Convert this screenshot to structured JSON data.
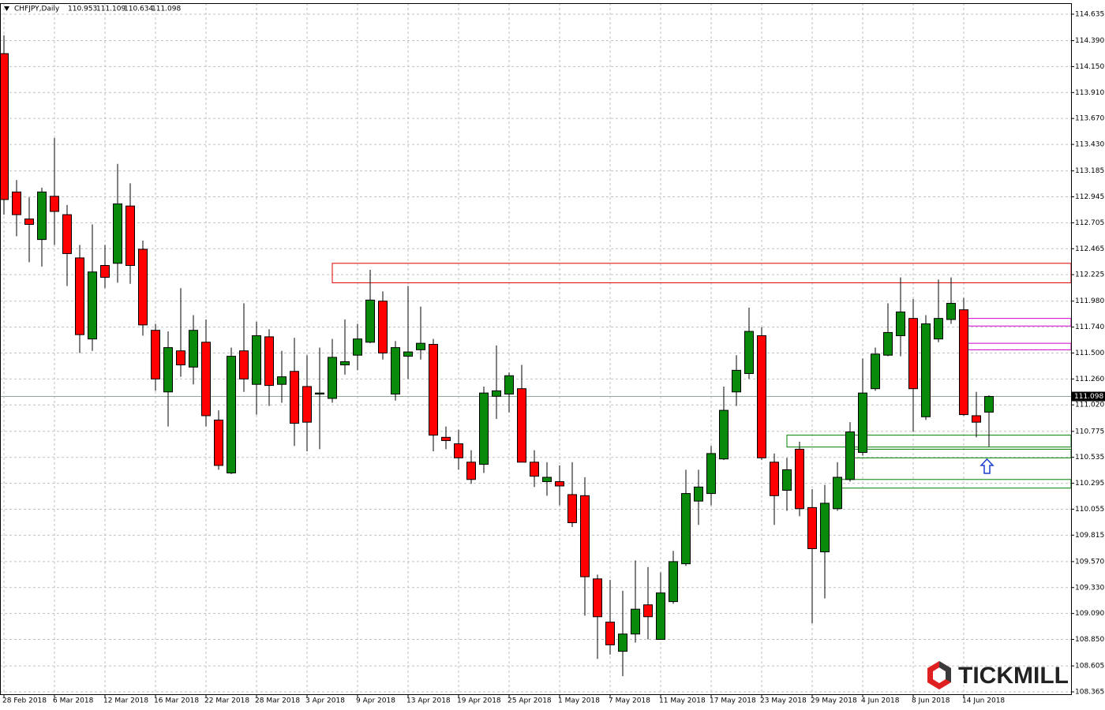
{
  "chart_data": {
    "type": "candlestick",
    "title": "CHFJPY,Daily",
    "watermark": "TICKMILL",
    "up_color": "#0a8a0a",
    "down_color": "#ff0000",
    "grid": true,
    "categories": [
      "28 Feb 2018",
      null,
      null,
      null,
      "6 Mar 2018",
      null,
      null,
      null,
      "12 Mar 2018",
      null,
      null,
      null,
      "16 Mar 2018",
      null,
      null,
      null,
      "22 Mar 2018",
      null,
      null,
      null,
      "28 Mar 2018",
      null,
      null,
      null,
      "3 Apr 2018",
      null,
      null,
      null,
      "9 Apr 2018",
      null,
      null,
      null,
      "13 Apr 2018",
      null,
      null,
      null,
      "19 Apr 2018",
      null,
      null,
      null,
      "25 Apr 2018",
      null,
      null,
      null,
      "1 May 2018",
      null,
      null,
      null,
      "7 May 2018",
      null,
      null,
      null,
      "11 May 2018",
      null,
      null,
      null,
      "17 May 2018",
      null,
      null,
      null,
      "23 May 2018",
      null,
      null,
      null,
      "29 May 2018",
      null,
      null,
      null,
      "4 Jun 2018",
      null,
      null,
      null,
      "8 Jun 2018",
      null,
      null,
      null,
      "14 Jun 2018",
      null,
      null
    ],
    "open": [
      114.27,
      112.99,
      112.74,
      112.55,
      112.95,
      112.78,
      112.38,
      111.63,
      112.31,
      112.33,
      112.86,
      112.46,
      111.71,
      111.14,
      111.52,
      111.37,
      111.6,
      110.88,
      110.39,
      111.52,
      111.21,
      111.65,
      111.21,
      111.33,
      111.19,
      111.12,
      111.08,
      111.39,
      111.48,
      111.6,
      111.98,
      111.12,
      111.47,
      111.53,
      111.58,
      110.72,
      110.66,
      110.49,
      110.47,
      111.1,
      111.12,
      111.17,
      110.49,
      110.31,
      110.31,
      110.19,
      110.18,
      109.41,
      109.01,
      108.74,
      108.9,
      109.17,
      108.85,
      109.2,
      109.55,
      110.13,
      110.2,
      110.52,
      111.14,
      111.31,
      111.66,
      110.49,
      110.23,
      110.61,
      110.07,
      109.66,
      110.06,
      110.33,
      110.58,
      111.17,
      111.48,
      111.66,
      111.82,
      110.91,
      111.63,
      111.81,
      111.9,
      110.92,
      110.953
    ],
    "high": [
      114.44,
      113.1,
      112.94,
      113.03,
      113.49,
      112.87,
      112.5,
      112.69,
      112.5,
      113.25,
      113.07,
      112.54,
      111.77,
      111.7,
      112.1,
      111.85,
      111.81,
      110.97,
      111.55,
      111.96,
      111.79,
      111.72,
      111.52,
      111.64,
      111.48,
      111.55,
      111.63,
      111.81,
      111.77,
      112.27,
      112.07,
      111.61,
      112.12,
      111.93,
      111.63,
      110.82,
      110.79,
      110.6,
      111.19,
      111.57,
      111.32,
      111.39,
      110.6,
      110.49,
      110.46,
      110.49,
      110.35,
      109.45,
      109.4,
      109.3,
      109.58,
      109.52,
      109.47,
      109.67,
      110.42,
      110.42,
      110.64,
      111.19,
      111.48,
      111.92,
      111.74,
      110.57,
      110.53,
      110.68,
      110.24,
      110.28,
      110.49,
      110.86,
      111.45,
      111.55,
      111.96,
      112.2,
      112.0,
      111.85,
      112.18,
      112.2,
      112.01,
      111.14,
      111.109
    ],
    "low": [
      112.78,
      112.58,
      112.34,
      112.3,
      112.5,
      112.12,
      111.5,
      111.52,
      112.1,
      112.15,
      112.14,
      111.66,
      111.15,
      110.82,
      111.28,
      111.21,
      110.82,
      110.42,
      110.38,
      111.14,
      110.93,
      111.01,
      111.04,
      110.64,
      110.59,
      110.61,
      111.04,
      111.3,
      111.34,
      111.59,
      111.44,
      111.06,
      111.26,
      111.44,
      110.59,
      110.61,
      110.42,
      110.29,
      110.39,
      110.89,
      110.95,
      110.49,
      110.26,
      110.18,
      110.09,
      109.89,
      109.07,
      108.67,
      108.71,
      108.51,
      108.82,
      108.85,
      108.85,
      109.18,
      109.53,
      109.91,
      110.09,
      110.51,
      111.01,
      111.26,
      110.51,
      109.91,
      110.04,
      109.99,
      109.0,
      109.23,
      110.04,
      110.31,
      110.55,
      111.15,
      111.47,
      111.47,
      110.77,
      110.88,
      111.6,
      111.77,
      110.92,
      110.72,
      110.634
    ],
    "close": [
      112.92,
      112.78,
      112.69,
      112.99,
      112.81,
      112.42,
      111.67,
      112.25,
      112.2,
      112.88,
      112.31,
      111.76,
      111.26,
      111.55,
      111.39,
      111.71,
      110.92,
      110.46,
      111.47,
      111.26,
      111.66,
      111.2,
      111.28,
      110.85,
      110.86,
      111.13,
      111.46,
      111.42,
      111.63,
      111.99,
      111.5,
      111.55,
      111.51,
      111.59,
      110.74,
      110.69,
      110.53,
      110.33,
      111.13,
      111.15,
      111.29,
      110.49,
      110.36,
      110.35,
      110.27,
      109.93,
      109.43,
      109.06,
      108.8,
      108.9,
      109.13,
      109.06,
      109.28,
      109.57,
      110.2,
      110.26,
      110.57,
      110.97,
      111.34,
      111.7,
      110.53,
      110.18,
      110.42,
      110.06,
      109.69,
      110.11,
      110.35,
      110.77,
      111.13,
      111.49,
      111.69,
      111.88,
      111.17,
      111.77,
      111.82,
      111.96,
      110.93,
      110.86,
      111.098
    ],
    "zones": [
      {
        "start": 26,
        "prices": [
          112.15,
          112.33
        ],
        "color": "#e00000"
      },
      {
        "start": 76,
        "prices": [
          111.75,
          111.82
        ],
        "color": "#cc00cc"
      },
      {
        "start": 76,
        "prices": [
          111.53,
          111.59
        ],
        "color": "#cc00cc"
      },
      {
        "start": 62,
        "prices": [
          110.63,
          110.74
        ],
        "color": "#008000"
      },
      {
        "start": 67,
        "prices": [
          110.53,
          110.61
        ],
        "color": "#008000"
      },
      {
        "start": 66,
        "prices": [
          110.25,
          110.33
        ],
        "color": "#008000"
      }
    ],
    "ylim": [
      108.343,
      114.737
    ],
    "yticks": [
      {
        "value": 114.635,
        "label": "114.635"
      },
      {
        "value": 114.39,
        "label": "114.390"
      },
      {
        "value": 114.15,
        "label": "114.150"
      },
      {
        "value": 113.91,
        "label": "113.910"
      },
      {
        "value": 113.67,
        "label": "113.670"
      },
      {
        "value": 113.43,
        "label": "113.430"
      },
      {
        "value": 113.185,
        "label": "113.185"
      },
      {
        "value": 112.945,
        "label": "112.945"
      },
      {
        "value": 112.705,
        "label": "112.705"
      },
      {
        "value": 112.465,
        "label": "112.465"
      },
      {
        "value": 112.225,
        "label": "112.225"
      },
      {
        "value": 111.98,
        "label": "111.980"
      },
      {
        "value": 111.74,
        "label": "111.740"
      },
      {
        "value": 111.5,
        "label": "111.500"
      },
      {
        "value": 111.26,
        "label": "111.260"
      },
      {
        "value": 111.02,
        "label": "111.020"
      },
      {
        "value": 110.775,
        "label": "110.775"
      },
      {
        "value": 110.535,
        "label": "110.535"
      },
      {
        "value": 110.295,
        "label": "110.295"
      },
      {
        "value": 110.055,
        "label": "110.055"
      },
      {
        "value": 109.815,
        "label": "109.815"
      },
      {
        "value": 109.57,
        "label": "109.570"
      },
      {
        "value": 109.33,
        "label": "109.330"
      },
      {
        "value": 109.09,
        "label": "109.090"
      },
      {
        "value": 108.85,
        "label": "108.850"
      },
      {
        "value": 108.605,
        "label": "108.605"
      },
      {
        "value": 108.365,
        "label": "108.365"
      }
    ]
  }
}
